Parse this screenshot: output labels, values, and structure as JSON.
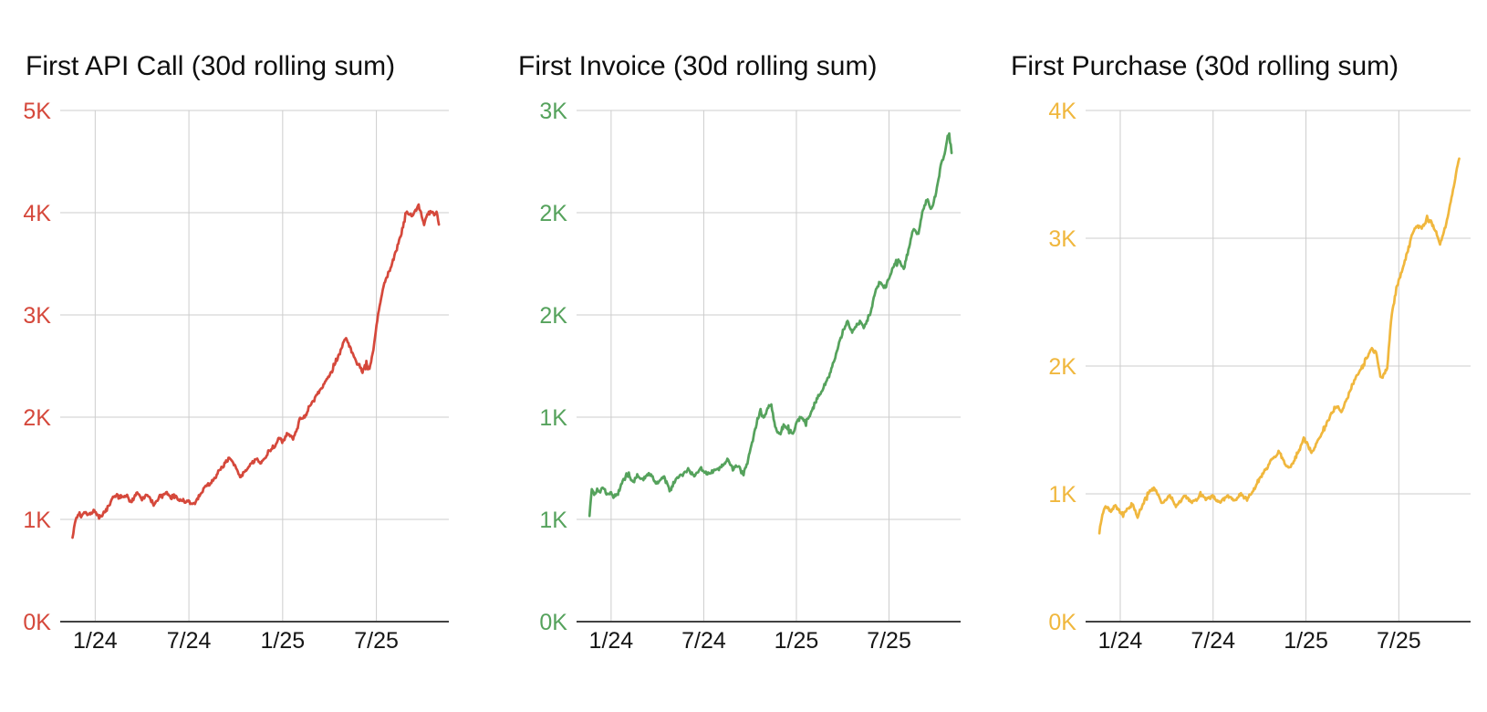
{
  "page": {
    "background": "#ffffff",
    "style": {
      "grid_color": "#cdcdcd",
      "axis_line_color": "#424242",
      "x_label_color": "#161616",
      "title_color": "#0e0e0e"
    }
  },
  "chart_data": [
    {
      "type": "line",
      "title": "First API Call (30d rolling sum)",
      "series_name": "First API Call",
      "color": "#d5483b",
      "legend": "none",
      "grid": true,
      "x_axis": {
        "unit": "months_since_2024_01",
        "tick_labels": [
          "1/24",
          "7/24",
          "1/25",
          "7/25"
        ],
        "tick_months": [
          0,
          6,
          12,
          18
        ],
        "range_months": [
          -1.45,
          22.0
        ]
      },
      "y_axis": {
        "min": 0,
        "max": 5000,
        "tick_labels": [
          "0K",
          "1K",
          "2K",
          "3K",
          "4K",
          "5K"
        ]
      },
      "noise_amplitude": 25,
      "keypoints": [
        [
          -1.45,
          810
        ],
        [
          -1.3,
          970
        ],
        [
          -1.15,
          1040
        ],
        [
          -0.95,
          1030
        ],
        [
          -0.7,
          1070
        ],
        [
          -0.45,
          1040
        ],
        [
          -0.2,
          1070
        ],
        [
          0.0,
          1070
        ],
        [
          0.25,
          1020
        ],
        [
          0.55,
          1060
        ],
        [
          0.85,
          1120
        ],
        [
          1.1,
          1200
        ],
        [
          1.35,
          1230
        ],
        [
          1.7,
          1220
        ],
        [
          2.0,
          1240
        ],
        [
          2.3,
          1170
        ],
        [
          2.65,
          1260
        ],
        [
          3.0,
          1210
        ],
        [
          3.35,
          1240
        ],
        [
          3.75,
          1140
        ],
        [
          4.1,
          1220
        ],
        [
          4.5,
          1270
        ],
        [
          4.85,
          1220
        ],
        [
          5.1,
          1230
        ],
        [
          5.6,
          1180
        ],
        [
          6.0,
          1170
        ],
        [
          6.3,
          1150
        ],
        [
          6.6,
          1210
        ],
        [
          7.05,
          1320
        ],
        [
          7.45,
          1360
        ],
        [
          7.8,
          1440
        ],
        [
          8.4,
          1570
        ],
        [
          8.6,
          1590
        ],
        [
          9.0,
          1500
        ],
        [
          9.3,
          1410
        ],
        [
          9.6,
          1470
        ],
        [
          9.95,
          1540
        ],
        [
          10.35,
          1590
        ],
        [
          10.6,
          1540
        ],
        [
          11.1,
          1660
        ],
        [
          11.5,
          1720
        ],
        [
          11.8,
          1800
        ],
        [
          12.0,
          1740
        ],
        [
          12.3,
          1850
        ],
        [
          12.7,
          1790
        ],
        [
          13.1,
          1970
        ],
        [
          13.45,
          2020
        ],
        [
          13.9,
          2150
        ],
        [
          14.4,
          2270
        ],
        [
          14.9,
          2390
        ],
        [
          15.3,
          2490
        ],
        [
          15.7,
          2640
        ],
        [
          16.0,
          2780
        ],
        [
          16.3,
          2690
        ],
        [
          16.6,
          2580
        ],
        [
          17.1,
          2450
        ],
        [
          17.35,
          2530
        ],
        [
          17.55,
          2460
        ],
        [
          17.8,
          2660
        ],
        [
          18.1,
          3000
        ],
        [
          18.5,
          3300
        ],
        [
          19.0,
          3500
        ],
        [
          19.55,
          3760
        ],
        [
          19.9,
          4010
        ],
        [
          20.3,
          3970
        ],
        [
          20.7,
          4070
        ],
        [
          21.05,
          3880
        ],
        [
          21.4,
          4030
        ],
        [
          21.7,
          3970
        ],
        [
          21.85,
          4020
        ],
        [
          22.0,
          3890
        ]
      ]
    },
    {
      "type": "line",
      "title": "First Invoice (30d rolling sum)",
      "series_name": "First Invoice",
      "color": "#55a25c",
      "legend": "none",
      "grid": true,
      "x_axis": {
        "unit": "months_since_2024_01",
        "tick_labels": [
          "1/24",
          "7/24",
          "1/25",
          "7/25"
        ],
        "tick_months": [
          0,
          6,
          12,
          18
        ],
        "range_months": [
          -1.4,
          22.05
        ]
      },
      "y_axis": {
        "min": 0,
        "max": 3000,
        "tick_labels": [
          "0K",
          "1K",
          "1K",
          "2K",
          "2K",
          "3K"
        ]
      },
      "noise_amplitude": 15,
      "keypoints": [
        [
          -1.4,
          620
        ],
        [
          -1.25,
          780
        ],
        [
          -1.1,
          740
        ],
        [
          -0.9,
          780
        ],
        [
          -0.7,
          760
        ],
        [
          -0.5,
          790
        ],
        [
          -0.3,
          750
        ],
        [
          0.0,
          755
        ],
        [
          0.15,
          730
        ],
        [
          0.5,
          760
        ],
        [
          0.8,
          835
        ],
        [
          1.1,
          870
        ],
        [
          1.4,
          810
        ],
        [
          1.7,
          860
        ],
        [
          2.1,
          840
        ],
        [
          2.5,
          870
        ],
        [
          2.9,
          810
        ],
        [
          3.4,
          845
        ],
        [
          3.85,
          770
        ],
        [
          4.2,
          835
        ],
        [
          4.6,
          860
        ],
        [
          5.0,
          890
        ],
        [
          5.4,
          860
        ],
        [
          5.8,
          900
        ],
        [
          6.0,
          880
        ],
        [
          6.4,
          870
        ],
        [
          6.8,
          890
        ],
        [
          7.2,
          910
        ],
        [
          7.6,
          950
        ],
        [
          7.9,
          890
        ],
        [
          8.25,
          920
        ],
        [
          8.55,
          860
        ],
        [
          8.8,
          930
        ],
        [
          9.1,
          1040
        ],
        [
          9.4,
          1160
        ],
        [
          9.65,
          1240
        ],
        [
          9.9,
          1200
        ],
        [
          10.15,
          1250
        ],
        [
          10.35,
          1270
        ],
        [
          10.65,
          1130
        ],
        [
          10.95,
          1100
        ],
        [
          11.2,
          1160
        ],
        [
          11.5,
          1120
        ],
        [
          11.8,
          1100
        ],
        [
          12.0,
          1170
        ],
        [
          12.3,
          1200
        ],
        [
          12.6,
          1170
        ],
        [
          12.9,
          1220
        ],
        [
          13.2,
          1280
        ],
        [
          13.5,
          1330
        ],
        [
          13.8,
          1380
        ],
        [
          14.1,
          1440
        ],
        [
          14.4,
          1520
        ],
        [
          14.7,
          1620
        ],
        [
          15.0,
          1700
        ],
        [
          15.3,
          1760
        ],
        [
          15.6,
          1700
        ],
        [
          16.1,
          1760
        ],
        [
          16.4,
          1730
        ],
        [
          16.85,
          1830
        ],
        [
          17.15,
          1950
        ],
        [
          17.45,
          2000
        ],
        [
          17.75,
          1950
        ],
        [
          18.0,
          2020
        ],
        [
          18.4,
          2100
        ],
        [
          18.65,
          2120
        ],
        [
          18.95,
          2060
        ],
        [
          19.25,
          2180
        ],
        [
          19.6,
          2310
        ],
        [
          19.9,
          2270
        ],
        [
          20.2,
          2420
        ],
        [
          20.5,
          2480
        ],
        [
          20.75,
          2410
        ],
        [
          21.05,
          2520
        ],
        [
          21.3,
          2650
        ],
        [
          21.6,
          2750
        ],
        [
          21.9,
          2870
        ],
        [
          22.05,
          2760
        ]
      ]
    },
    {
      "type": "line",
      "title": "First Purchase (30d rolling sum)",
      "series_name": "First Purchase",
      "color": "#f0b73d",
      "legend": "none",
      "grid": true,
      "x_axis": {
        "unit": "months_since_2024_01",
        "tick_labels": [
          "1/24",
          "7/24",
          "1/25",
          "7/25"
        ],
        "tick_months": [
          0,
          6,
          12,
          18
        ],
        "range_months": [
          -1.35,
          21.9
        ]
      },
      "y_axis": {
        "min": 0,
        "max": 4000,
        "tick_labels": [
          "0K",
          "1K",
          "2K",
          "3K",
          "4K"
        ]
      },
      "noise_amplitude": 19,
      "keypoints": [
        [
          -1.35,
          700
        ],
        [
          -1.1,
          870
        ],
        [
          -0.85,
          900
        ],
        [
          -0.6,
          860
        ],
        [
          -0.35,
          910
        ],
        [
          -0.1,
          870
        ],
        [
          0.2,
          835
        ],
        [
          0.5,
          880
        ],
        [
          0.8,
          920
        ],
        [
          1.1,
          820
        ],
        [
          1.5,
          930
        ],
        [
          1.8,
          1010
        ],
        [
          2.2,
          1050
        ],
        [
          2.7,
          920
        ],
        [
          3.2,
          990
        ],
        [
          3.6,
          905
        ],
        [
          4.2,
          985
        ],
        [
          4.7,
          930
        ],
        [
          5.2,
          1000
        ],
        [
          5.6,
          950
        ],
        [
          6.0,
          985
        ],
        [
          6.4,
          930
        ],
        [
          6.9,
          985
        ],
        [
          7.4,
          950
        ],
        [
          7.8,
          1000
        ],
        [
          8.2,
          950
        ],
        [
          8.65,
          1040
        ],
        [
          9.05,
          1130
        ],
        [
          9.45,
          1200
        ],
        [
          9.85,
          1270
        ],
        [
          10.25,
          1330
        ],
        [
          10.65,
          1230
        ],
        [
          10.95,
          1200
        ],
        [
          11.25,
          1270
        ],
        [
          11.65,
          1360
        ],
        [
          11.85,
          1440
        ],
        [
          12.1,
          1380
        ],
        [
          12.4,
          1320
        ],
        [
          12.8,
          1420
        ],
        [
          13.2,
          1510
        ],
        [
          13.6,
          1620
        ],
        [
          14.0,
          1690
        ],
        [
          14.3,
          1640
        ],
        [
          14.7,
          1760
        ],
        [
          15.0,
          1850
        ],
        [
          15.4,
          1950
        ],
        [
          15.8,
          2020
        ],
        [
          16.2,
          2130
        ],
        [
          16.55,
          2100
        ],
        [
          16.85,
          1900
        ],
        [
          17.25,
          1980
        ],
        [
          17.5,
          2370
        ],
        [
          17.7,
          2510
        ],
        [
          17.9,
          2630
        ],
        [
          18.2,
          2750
        ],
        [
          18.5,
          2870
        ],
        [
          18.8,
          3000
        ],
        [
          19.1,
          3100
        ],
        [
          19.5,
          3080
        ],
        [
          19.8,
          3150
        ],
        [
          20.1,
          3120
        ],
        [
          20.4,
          3050
        ],
        [
          20.65,
          2950
        ],
        [
          21.0,
          3080
        ],
        [
          21.3,
          3250
        ],
        [
          21.5,
          3370
        ],
        [
          21.7,
          3510
        ],
        [
          21.9,
          3630
        ]
      ]
    }
  ]
}
